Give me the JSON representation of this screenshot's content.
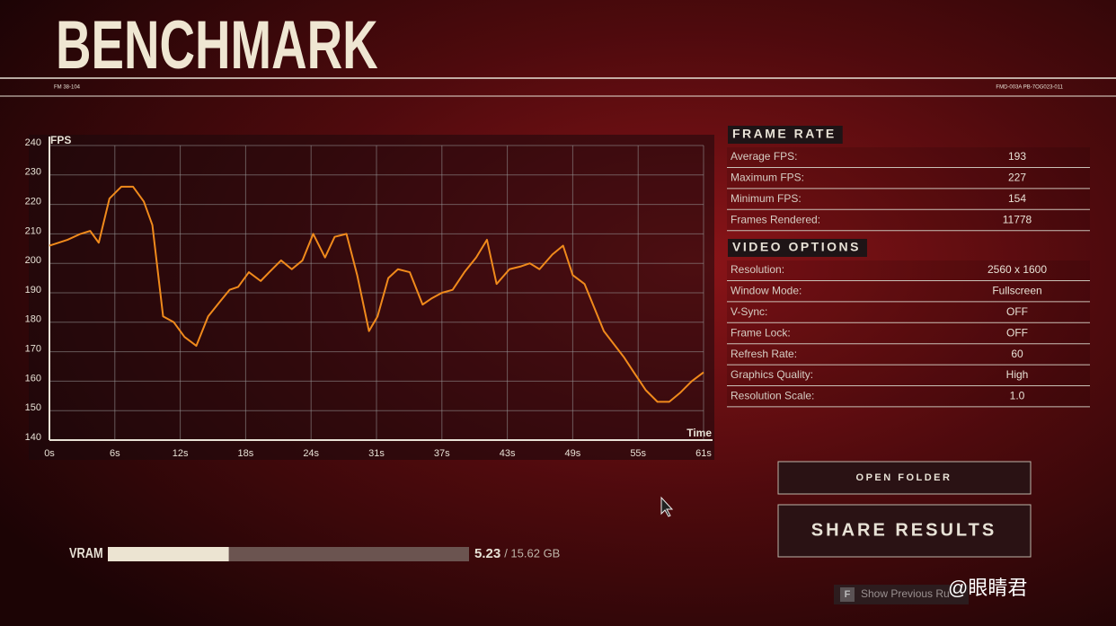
{
  "header": {
    "title": "BENCHMARK",
    "code_left": "FM 38-104",
    "code_right": "FMD-003A PB-7OG023-011"
  },
  "chart_data": {
    "type": "line",
    "y_label": "FPS",
    "x_label": "Time",
    "color": "#f08a1c",
    "grid": true,
    "xlim": [
      0,
      61
    ],
    "ylim": [
      140,
      240
    ],
    "xticks": [
      {
        "value": 0,
        "label": "0s"
      },
      {
        "value": 6.1,
        "label": "6s"
      },
      {
        "value": 12.2,
        "label": "12s"
      },
      {
        "value": 18.3,
        "label": "18s"
      },
      {
        "value": 24.4,
        "label": "24s"
      },
      {
        "value": 30.5,
        "label": "31s"
      },
      {
        "value": 36.6,
        "label": "37s"
      },
      {
        "value": 42.7,
        "label": "43s"
      },
      {
        "value": 48.8,
        "label": "49s"
      },
      {
        "value": 54.9,
        "label": "55s"
      },
      {
        "value": 61,
        "label": "61s"
      }
    ],
    "yticks": [
      140,
      150,
      160,
      170,
      180,
      190,
      200,
      210,
      220,
      230,
      240
    ],
    "x": [
      0,
      1.7,
      2.9,
      3.8,
      4.6,
      5.6,
      6.7,
      7.8,
      8.8,
      9.6,
      10.6,
      11.6,
      12.6,
      13.7,
      14.8,
      15.9,
      16.8,
      17.6,
      18.6,
      19.7,
      20.5,
      21.6,
      22.6,
      23.6,
      24.6,
      25.7,
      26.6,
      27.7,
      28.7,
      29.8,
      30.6,
      31.6,
      32.5,
      33.6,
      34.8,
      35.6,
      36.6,
      37.6,
      38.7,
      39.8,
      40.8,
      41.7,
      42.9,
      44.0,
      44.8,
      45.7,
      46.9,
      47.9,
      48.8,
      49.9,
      51.7,
      53.6,
      54.5,
      55.6,
      56.7,
      57.8,
      58.8,
      59.9,
      61
    ],
    "values": [
      206,
      208,
      210,
      211,
      207,
      222,
      226,
      226,
      221,
      213,
      182,
      180,
      175,
      172,
      182,
      187,
      191,
      192,
      197,
      194,
      197,
      201,
      198,
      201,
      210,
      202,
      209,
      210,
      196,
      177,
      182,
      195,
      198,
      197,
      186,
      188,
      190,
      191,
      197,
      202,
      208,
      193,
      198,
      199,
      200,
      198,
      203,
      206,
      196,
      193,
      177,
      168,
      163,
      157,
      153,
      153,
      156,
      160,
      163
    ]
  },
  "frame_rate": {
    "title": "FRAME RATE",
    "rows": [
      [
        "Average FPS:",
        "193"
      ],
      [
        "Maximum FPS:",
        "227"
      ],
      [
        "Minimum FPS:",
        "154"
      ],
      [
        "Frames Rendered:",
        "11778"
      ]
    ]
  },
  "video_options": {
    "title": "VIDEO OPTIONS",
    "rows": [
      [
        "Resolution:",
        "2560 x 1600"
      ],
      [
        "Window Mode:",
        "Fullscreen"
      ],
      [
        "V-Sync:",
        "OFF"
      ],
      [
        "Frame Lock:",
        "OFF"
      ],
      [
        "Refresh Rate:",
        "60"
      ],
      [
        "Graphics Quality:",
        "High"
      ],
      [
        "Resolution Scale:",
        "1.0"
      ]
    ]
  },
  "buttons": {
    "open_folder": "OPEN FOLDER",
    "share_results": "SHARE RESULTS"
  },
  "vram": {
    "label": "VRAM",
    "used": 5.23,
    "total": {
      "value": 15.62,
      "label": "/ 15.62 GB"
    }
  },
  "footer": {
    "key": "F",
    "hint": "Show Previous Ru",
    "watermark": "@眼睛君"
  }
}
